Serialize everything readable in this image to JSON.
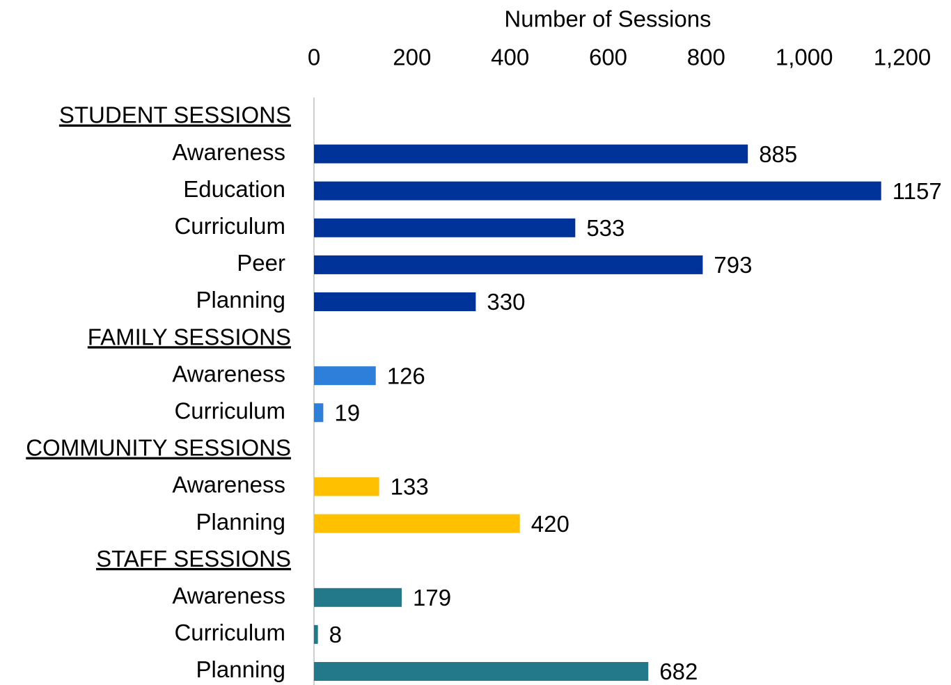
{
  "chart_data": {
    "type": "grouped-hbar",
    "x_label": "Number of Sessions",
    "xlim": [
      0,
      1200
    ],
    "xticks": [
      0,
      200,
      400,
      600,
      800,
      {
        "value": 1000,
        "label": "1,000"
      },
      {
        "value": 1200,
        "label": "1,200"
      }
    ],
    "groups": [
      {
        "name": "STUDENT SESSIONS",
        "color": "#003399",
        "categories": [
          "Awareness",
          "Education",
          "Curriculum",
          "Peer",
          "Planning"
        ],
        "values": [
          885,
          1157,
          533,
          793,
          330
        ]
      },
      {
        "name": "FAMILY SESSIONS",
        "color": "#2e7fd9",
        "categories": [
          "Awareness",
          "Curriculum"
        ],
        "values": [
          126,
          19
        ]
      },
      {
        "name": "COMMUNITY SESSIONS",
        "color": "#ffc000",
        "categories": [
          "Awareness",
          "Planning"
        ],
        "values": [
          133,
          420
        ]
      },
      {
        "name": "STAFF SESSIONS",
        "color": "#23798a",
        "categories": [
          "Awareness",
          "Curriculum",
          "Planning"
        ],
        "values": [
          179,
          8,
          682
        ]
      }
    ]
  }
}
